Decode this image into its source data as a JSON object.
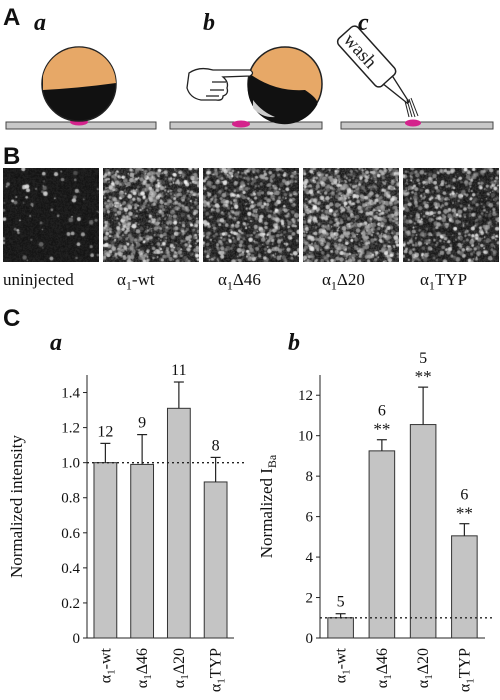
{
  "figure": {
    "panel_A": {
      "letter": "A",
      "subpanels": [
        {
          "letter": "a"
        },
        {
          "letter": "b"
        },
        {
          "letter": "c",
          "bottle_text": "wash"
        }
      ]
    },
    "panel_B": {
      "letter": "B",
      "images": [
        {
          "label_main": "uninjected",
          "label_sub": "",
          "label_rest": ""
        },
        {
          "label_main": "α",
          "label_sub": "1",
          "label_rest": "-wt"
        },
        {
          "label_main": "α",
          "label_sub": "1",
          "label_rest": "Δ46"
        },
        {
          "label_main": "α",
          "label_sub": "1",
          "label_rest": "Δ20"
        },
        {
          "label_main": "α",
          "label_sub": "1",
          "label_rest": "TYP"
        }
      ]
    },
    "panel_C": {
      "letter": "C"
    }
  },
  "chart_data": [
    {
      "type": "bar",
      "subpanel": "a",
      "categories": [
        "α1-wt",
        "α1Δ46",
        "α1Δ20",
        "α1TYP"
      ],
      "category_parts": [
        [
          "α",
          "1",
          "-wt"
        ],
        [
          "α",
          "1",
          "Δ46"
        ],
        [
          "α",
          "1",
          "Δ20"
        ],
        [
          "α",
          "1",
          "TYP"
        ]
      ],
      "values": [
        1.0,
        0.99,
        1.31,
        0.89
      ],
      "errors": [
        0.11,
        0.17,
        0.15,
        0.14
      ],
      "n_labels": [
        "12",
        "9",
        "11",
        "8"
      ],
      "significance": [
        "",
        "",
        "",
        ""
      ],
      "ylabel": "Normalized intensity",
      "ylabel_sub": "",
      "ylim": [
        0,
        1.5
      ],
      "yticks": [
        0,
        0.2,
        0.4,
        0.6,
        0.8,
        1.0,
        1.2,
        1.4
      ],
      "ytick_labels": [
        "0",
        "0.2",
        "0.4",
        "0.6",
        "0.8",
        "1.0",
        "1.2",
        "1.4"
      ],
      "reference_line": 1.0,
      "bar_color": "#c4c4c4"
    },
    {
      "type": "bar",
      "subpanel": "b",
      "categories": [
        "α1-wt",
        "α1Δ46",
        "α1Δ20",
        "α1TYP"
      ],
      "category_parts": [
        [
          "α",
          "1",
          "-wt"
        ],
        [
          "α",
          "1",
          "Δ46"
        ],
        [
          "α",
          "1",
          "Δ20"
        ],
        [
          "α",
          "1",
          "TYP"
        ]
      ],
      "values": [
        1.0,
        9.25,
        10.55,
        5.05
      ],
      "errors": [
        0.2,
        0.55,
        1.85,
        0.6
      ],
      "n_labels": [
        "5",
        "6",
        "5",
        "6"
      ],
      "significance": [
        "",
        "**",
        "**",
        "**"
      ],
      "ylabel": "Normalized I",
      "ylabel_sub": "Ba",
      "ylim": [
        0,
        13
      ],
      "yticks": [
        0,
        2,
        4,
        6,
        8,
        10,
        12
      ],
      "ytick_labels": [
        "0",
        "2",
        "4",
        "6",
        "8",
        "10",
        "12"
      ],
      "reference_line": 1.0,
      "bar_color": "#c4c4c4"
    }
  ]
}
